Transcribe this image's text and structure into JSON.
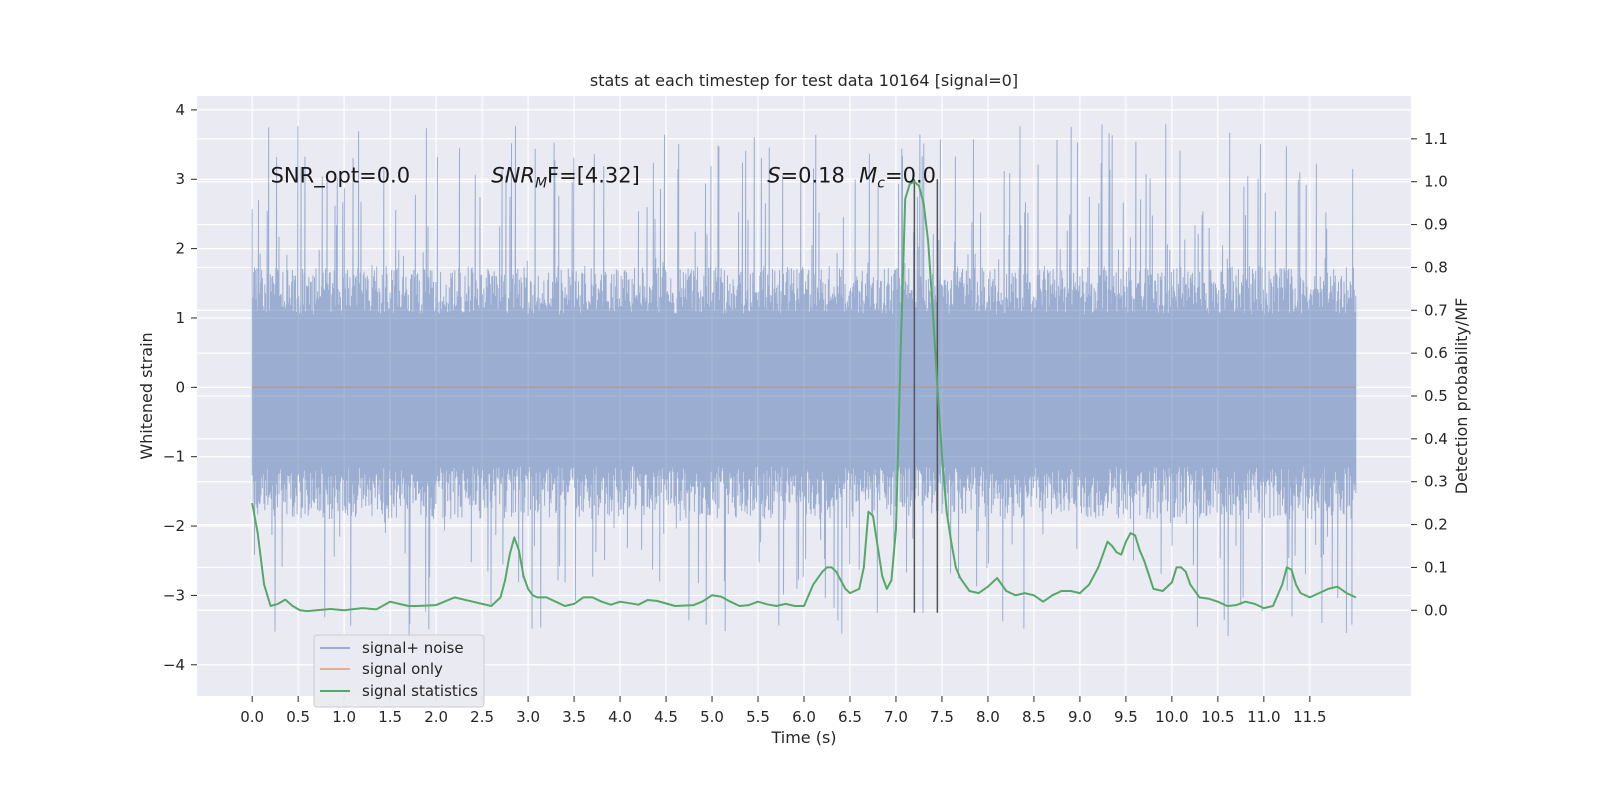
{
  "chart_data": {
    "type": "line",
    "title": "stats at each timestep for test data 10164 [signal=0]",
    "xlabel": "Time (s)",
    "ylabel_left": "Whitened strain",
    "ylabel_right": "Detection probability/MF",
    "xlim": [
      -0.6,
      12.6
    ],
    "ylim_left": [
      -4.45,
      4.2
    ],
    "ylim_right": [
      -0.2,
      1.2
    ],
    "x_ticks": [
      "0.0",
      "0.5",
      "1.0",
      "1.5",
      "2.0",
      "2.5",
      "3.0",
      "3.5",
      "4.0",
      "4.5",
      "5.0",
      "5.5",
      "6.0",
      "6.5",
      "7.0",
      "7.5",
      "8.0",
      "8.5",
      "9.0",
      "9.5",
      "10.0",
      "10.5",
      "11.0",
      "11.5"
    ],
    "y_ticks_left": [
      "−4",
      "−3",
      "−2",
      "−1",
      "0",
      "1",
      "2",
      "3",
      "4"
    ],
    "y_ticks_right": [
      "0.0",
      "0.1",
      "0.2",
      "0.3",
      "0.4",
      "0.5",
      "0.6",
      "0.7",
      "0.8",
      "0.9",
      "1.0",
      "1.1"
    ],
    "grid": true,
    "legend_position": "lower-left",
    "colors": {
      "noise": "#4c72b0",
      "signal": "#dd8452",
      "stats": "#55a868",
      "vline": "#555555",
      "background": "#eaeaf2"
    },
    "series": [
      {
        "name": "signal+ noise",
        "axis": "left",
        "x_range": [
          0.0,
          12.0
        ],
        "band": {
          "typical_min": -1.9,
          "typical_max": 1.75,
          "peak_max": 3.8,
          "peak_min": -3.6
        }
      },
      {
        "name": "signal only",
        "axis": "left",
        "x": [
          0.0,
          12.0
        ],
        "values": [
          0.0,
          0.0
        ]
      },
      {
        "name": "signal statistics",
        "axis": "right",
        "x": [
          0.0,
          0.06,
          0.13,
          0.2,
          0.28,
          0.36,
          0.44,
          0.52,
          0.6,
          0.7,
          0.85,
          1.0,
          1.2,
          1.35,
          1.5,
          1.6,
          1.7,
          1.8,
          2.0,
          2.2,
          2.4,
          2.5,
          2.6,
          2.7,
          2.75,
          2.8,
          2.85,
          2.9,
          2.95,
          3.0,
          3.05,
          3.1,
          3.2,
          3.3,
          3.4,
          3.5,
          3.6,
          3.7,
          3.8,
          3.9,
          4.0,
          4.2,
          4.3,
          4.4,
          4.6,
          4.8,
          4.9,
          5.0,
          5.1,
          5.2,
          5.3,
          5.4,
          5.5,
          5.6,
          5.7,
          5.8,
          5.9,
          6.0,
          6.1,
          6.2,
          6.25,
          6.3,
          6.35,
          6.4,
          6.45,
          6.5,
          6.6,
          6.65,
          6.7,
          6.75,
          6.8,
          6.85,
          6.9,
          6.95,
          7.0,
          7.05,
          7.1,
          7.15,
          7.2,
          7.25,
          7.3,
          7.35,
          7.4,
          7.45,
          7.5,
          7.55,
          7.6,
          7.65,
          7.7,
          7.8,
          7.9,
          8.0,
          8.1,
          8.2,
          8.3,
          8.4,
          8.5,
          8.6,
          8.7,
          8.8,
          8.9,
          9.0,
          9.1,
          9.2,
          9.3,
          9.35,
          9.4,
          9.45,
          9.5,
          9.55,
          9.6,
          9.65,
          9.7,
          9.8,
          9.9,
          10.0,
          10.05,
          10.1,
          10.15,
          10.2,
          10.3,
          10.4,
          10.5,
          10.6,
          10.7,
          10.8,
          10.9,
          11.0,
          11.1,
          11.2,
          11.25,
          11.3,
          11.35,
          11.4,
          11.5,
          11.6,
          11.7,
          11.8,
          11.9,
          12.0
        ],
        "values": [
          0.25,
          0.18,
          0.06,
          0.01,
          0.015,
          0.025,
          0.01,
          0.0,
          -0.002,
          0.0,
          0.003,
          0.0,
          0.005,
          0.002,
          0.02,
          0.015,
          0.01,
          0.01,
          0.012,
          0.03,
          0.02,
          0.015,
          0.01,
          0.03,
          0.07,
          0.13,
          0.17,
          0.14,
          0.08,
          0.05,
          0.035,
          0.03,
          0.03,
          0.02,
          0.01,
          0.015,
          0.03,
          0.03,
          0.02,
          0.013,
          0.02,
          0.013,
          0.024,
          0.022,
          0.01,
          0.012,
          0.021,
          0.035,
          0.032,
          0.02,
          0.01,
          0.012,
          0.02,
          0.014,
          0.01,
          0.015,
          0.01,
          0.01,
          0.06,
          0.09,
          0.1,
          0.1,
          0.09,
          0.07,
          0.05,
          0.04,
          0.05,
          0.1,
          0.23,
          0.22,
          0.15,
          0.08,
          0.05,
          0.07,
          0.19,
          0.6,
          0.96,
          0.995,
          1.0,
          0.99,
          0.95,
          0.86,
          0.7,
          0.52,
          0.36,
          0.23,
          0.16,
          0.1,
          0.075,
          0.045,
          0.04,
          0.055,
          0.075,
          0.045,
          0.035,
          0.04,
          0.035,
          0.02,
          0.035,
          0.045,
          0.045,
          0.04,
          0.06,
          0.1,
          0.16,
          0.15,
          0.135,
          0.13,
          0.16,
          0.18,
          0.175,
          0.14,
          0.115,
          0.05,
          0.045,
          0.065,
          0.1,
          0.1,
          0.09,
          0.06,
          0.03,
          0.027,
          0.02,
          0.01,
          0.012,
          0.02,
          0.015,
          0.005,
          0.01,
          0.06,
          0.1,
          0.095,
          0.06,
          0.04,
          0.03,
          0.04,
          0.05,
          0.055,
          0.04,
          0.03
        ]
      }
    ],
    "vlines": [
      {
        "x": 7.2,
        "y_range_left": [
          -3.25,
          3.0
        ]
      },
      {
        "x": 7.45,
        "y_range_left": [
          -3.25,
          3.0
        ]
      }
    ],
    "annotations": [
      {
        "text": "SNR_opt=0.0",
        "x": 0.2,
        "y": 2.95,
        "style": "plain"
      },
      {
        "text": "SNR",
        "sub": "M",
        "tail": "F=[4.32]",
        "x": 2.6,
        "y": 2.95,
        "style": "math"
      },
      {
        "text": "S",
        "tail": "=0.18",
        "x": 5.6,
        "y": 2.95,
        "style": "math"
      },
      {
        "text": "M",
        "sub": "c",
        "tail": "=0.0",
        "x": 6.6,
        "y": 2.95,
        "style": "math"
      }
    ]
  }
}
